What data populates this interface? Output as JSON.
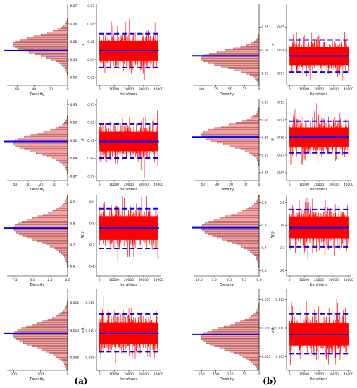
{
  "figure": {
    "panel_labels": [
      "(a)",
      "(b)"
    ]
  },
  "colors": {
    "trace": "#ff0000",
    "hist_fill": "#f4a3a3",
    "hist_stroke": "#6e2a2a",
    "estimate_line": "#0000ff"
  },
  "chart_data": [
    {
      "id": "a-row1",
      "panel": "a",
      "density": {
        "type": "bar",
        "orientation": "horizontal",
        "xlabel": "Density",
        "x_ticks": [
          60,
          40,
          20,
          0
        ],
        "x_max": 72,
        "mode": 0.0485,
        "spread": 0.0045,
        "tail": "right"
      },
      "trace": {
        "type": "line",
        "xlabel": "Iterations",
        "ylabel": "ε",
        "y_ticks": [
          0.03,
          0.04,
          0.05,
          0.06,
          0.07
        ],
        "ylim": [
          0.026,
          0.071
        ],
        "x_ticks": [
          0,
          10000,
          20000,
          30000,
          40000
        ],
        "xlim": [
          -2000,
          41500
        ],
        "iterations": 40000,
        "mean": 0.045,
        "lower": 0.0355,
        "upper": 0.0545,
        "sd": 0.0048
      }
    },
    {
      "id": "b-row1",
      "panel": "b",
      "density": {
        "type": "bar",
        "orientation": "horizontal",
        "xlabel": "Density",
        "x_ticks": [
          100,
          75,
          50,
          25,
          0
        ],
        "x_max": 112,
        "mode": 0.0365,
        "spread": 0.0032,
        "tail": "right"
      },
      "trace": {
        "type": "line",
        "xlabel": "Iterations",
        "ylabel": "ε",
        "y_ticks": [
          0.03,
          0.04,
          0.05
        ],
        "ylim": [
          0.025,
          0.06
        ],
        "x_ticks": [
          0,
          10000,
          20000,
          30000,
          40000
        ],
        "xlim": [
          -2000,
          41500
        ],
        "iterations": 40000,
        "mean": 0.0375,
        "lower": 0.0305,
        "upper": 0.0445,
        "sd": 0.0035
      }
    },
    {
      "id": "a-row2",
      "panel": "a",
      "density": {
        "type": "bar",
        "orientation": "horizontal",
        "xlabel": "Density",
        "x_ticks": [
          40,
          30,
          20,
          10,
          0
        ],
        "x_max": 46,
        "mode": 0.9077,
        "spread": 0.0092,
        "tail": "right"
      },
      "trace": {
        "type": "line",
        "xlabel": "Iterations",
        "ylabel": "θ",
        "y_ticks": [
          0.87,
          0.89,
          0.91,
          0.93,
          0.95
        ],
        "ylim": [
          0.866,
          0.956
        ],
        "x_ticks": [
          0,
          10000,
          20000,
          30000,
          40000
        ],
        "xlim": [
          -2000,
          41500
        ],
        "iterations": 40000,
        "mean": 0.909,
        "lower": 0.8905,
        "upper": 0.9285,
        "sd": 0.0095
      }
    },
    {
      "id": "b-row2",
      "panel": "b",
      "density": {
        "type": "bar",
        "orientation": "horizontal",
        "xlabel": "Density",
        "x_ticks": [
          40,
          30,
          20,
          10,
          0
        ],
        "x_max": 46,
        "mode": 0.8935,
        "spread": 0.0094,
        "tail": "right"
      },
      "trace": {
        "type": "line",
        "xlabel": "Iterations",
        "ylabel": "θ",
        "y_ticks": [
          0.85,
          0.87,
          0.89,
          0.91,
          0.93
        ],
        "ylim": [
          0.842,
          0.933
        ],
        "x_ticks": [
          0,
          10000,
          20000,
          30000,
          40000
        ],
        "xlim": [
          -2000,
          41500
        ],
        "iterations": 40000,
        "mean": 0.8905,
        "lower": 0.8725,
        "upper": 0.9085,
        "sd": 0.0095
      }
    },
    {
      "id": "a-row3",
      "panel": "a",
      "density": {
        "type": "bar",
        "orientation": "horizontal",
        "xlabel": "Density",
        "x_ticks": [
          7.5,
          5.0,
          2.5,
          0.0
        ],
        "x_max": 8.6,
        "mode": 0.78,
        "spread": 0.048,
        "tail": "right"
      },
      "trace": {
        "type": "line",
        "xlabel": "Iterations",
        "ylabel": "R(t)",
        "y_ticks": [
          0.6,
          0.7,
          0.8,
          0.9
        ],
        "ylim": [
          0.56,
          0.935
        ],
        "x_ticks": [
          0,
          10000,
          20000,
          30000,
          40000
        ],
        "xlim": [
          -2000,
          41500
        ],
        "iterations": 40000,
        "mean": 0.78,
        "lower": 0.685,
        "upper": 0.87,
        "sd": 0.048
      }
    },
    {
      "id": "b-row3",
      "panel": "b",
      "density": {
        "type": "bar",
        "orientation": "horizontal",
        "xlabel": "Density",
        "x_ticks": [
          10.0,
          7.5,
          5.0,
          2.5,
          0.0
        ],
        "x_max": 10.8,
        "mode": 0.79,
        "spread": 0.046,
        "tail": "right"
      },
      "trace": {
        "type": "line",
        "xlabel": "Iterations",
        "ylabel": "R(t)",
        "y_ticks": [
          0.6,
          0.7,
          0.8,
          0.9
        ],
        "ylim": [
          0.58,
          0.935
        ],
        "x_ticks": [
          0,
          10000,
          20000,
          30000,
          40000
        ],
        "xlim": [
          -2000,
          41500
        ],
        "iterations": 40000,
        "mean": 0.79,
        "lower": 0.705,
        "upper": 0.87,
        "sd": 0.043
      }
    },
    {
      "id": "a-row4",
      "panel": "a",
      "density": {
        "type": "bar",
        "orientation": "horizontal",
        "xlabel": "Density",
        "x_ticks": [
          200,
          100,
          0
        ],
        "x_max": 225,
        "mode": 0.0092,
        "spread": 0.0019,
        "tail": "right"
      },
      "trace": {
        "type": "line",
        "xlabel": "Iterations",
        "ylabel": "h(t)",
        "y_ticks": [
          0.005,
          0.01,
          0.015
        ],
        "ylim": [
          0.0028,
          0.0175
        ],
        "x_ticks": [
          0,
          10000,
          20000,
          30000,
          40000
        ],
        "xlim": [
          -2000,
          41500
        ],
        "iterations": 40000,
        "mean": 0.0094,
        "lower": 0.0061,
        "upper": 0.013,
        "sd": 0.0017
      }
    },
    {
      "id": "b-row4",
      "panel": "b",
      "density": {
        "type": "bar",
        "orientation": "horizontal",
        "xlabel": "Density",
        "x_ticks": [
          200,
          150,
          100,
          50,
          0
        ],
        "x_max": 225,
        "mode": 0.0084,
        "spread": 0.0018,
        "tail": "right"
      },
      "trace": {
        "type": "line",
        "xlabel": "Iterations",
        "ylabel": "h(t)",
        "y_ticks": [
          0.005,
          0.01,
          0.015
        ],
        "ylim": [
          0.0027,
          0.0168
        ],
        "x_ticks": [
          0,
          10000,
          20000,
          30000,
          40000
        ],
        "xlim": [
          -2000,
          41500
        ],
        "iterations": 40000,
        "mean": 0.0089,
        "lower": 0.0055,
        "upper": 0.0125,
        "sd": 0.0017
      }
    }
  ]
}
